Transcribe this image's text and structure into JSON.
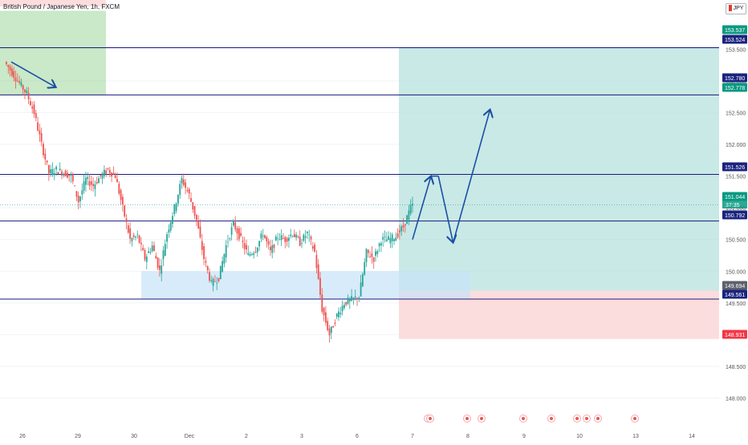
{
  "header": {
    "title": "British Pound / Japanese Yen, 1h, FXCM",
    "currency": "JPY"
  },
  "colors": {
    "up": "#26a69a",
    "down": "#ef5350",
    "hline": "#1a1a7e",
    "profit_zone": "#b2dfdb",
    "stop_zone": "#fbd5d5",
    "demand_zone": "#c8e3f8",
    "supply_zone": "#a5dba4",
    "arrow": "#1b4fa5",
    "label_navy": "#1a237e",
    "label_green": "#089981",
    "label_red": "#f23645"
  },
  "chart_data": {
    "type": "candlestick",
    "title": "British Pound / Japanese Yen, 1h, FXCM",
    "x_ticks": [
      "26",
      "29",
      "30",
      "Dec",
      "2",
      "3",
      "6",
      "7",
      "8",
      "9",
      "10",
      "13",
      "14"
    ],
    "y_ticks": [
      "148.000",
      "148.500",
      "149.000",
      "149.500",
      "150.000",
      "150.500",
      "151.000",
      "151.500",
      "152.000",
      "152.500",
      "153.000",
      "153.500"
    ],
    "ylim": [
      147.5,
      153.7
    ],
    "last_price": 151.044,
    "countdown": "37:35",
    "horizontal_levels": [
      153.524,
      152.78,
      151.526,
      150.792,
      149.561
    ],
    "price_labels": [
      {
        "value": "153.537",
        "kind": "green"
      },
      {
        "value": "153.524",
        "kind": "navy"
      },
      {
        "value": "152.780",
        "kind": "navy"
      },
      {
        "value": "152.778",
        "kind": "green"
      },
      {
        "value": "151.526",
        "kind": "navy"
      },
      {
        "value": "151.044",
        "kind": "teal"
      },
      {
        "value": "150.792",
        "kind": "navy"
      },
      {
        "value": "149.694",
        "kind": "gray"
      },
      {
        "value": "149.561",
        "kind": "navy"
      },
      {
        "value": "148.931",
        "kind": "red"
      }
    ],
    "position": {
      "entry": 149.694,
      "target": 153.537,
      "stop": 148.931
    },
    "zones": [
      {
        "name": "demand",
        "top": 150.0,
        "bottom": 149.561
      },
      {
        "name": "supply",
        "top": 153.537,
        "bottom": 152.778
      }
    ],
    "price_path": [
      [
        0,
        153.3
      ],
      [
        1.5,
        153.05
      ],
      [
        3,
        152.8
      ],
      [
        4,
        152.5
      ],
      [
        5,
        152.0
      ],
      [
        6,
        151.55
      ],
      [
        7,
        151.6
      ],
      [
        8,
        151.55
      ],
      [
        9,
        151.5
      ],
      [
        10,
        151.1
      ],
      [
        11,
        151.45
      ],
      [
        12,
        151.35
      ],
      [
        13,
        151.5
      ],
      [
        14,
        151.6
      ],
      [
        15,
        151.5
      ],
      [
        16,
        151.0
      ],
      [
        17,
        150.5
      ],
      [
        18,
        150.55
      ],
      [
        19,
        150.2
      ],
      [
        20,
        150.4
      ],
      [
        21,
        150.0
      ],
      [
        22,
        150.6
      ],
      [
        23,
        151.0
      ],
      [
        24,
        151.45
      ],
      [
        25,
        151.2
      ],
      [
        26,
        150.8
      ],
      [
        27,
        150.2
      ],
      [
        28,
        149.8
      ],
      [
        29,
        149.9
      ],
      [
        30,
        150.4
      ],
      [
        31,
        150.75
      ],
      [
        32,
        150.5
      ],
      [
        33,
        150.25
      ],
      [
        34,
        150.35
      ],
      [
        35,
        150.6
      ],
      [
        36,
        150.3
      ],
      [
        37,
        150.55
      ],
      [
        38,
        150.5
      ],
      [
        39,
        150.6
      ],
      [
        40,
        150.45
      ],
      [
        41,
        150.6
      ],
      [
        42,
        150.3
      ],
      [
        43,
        149.4
      ],
      [
        44,
        149.0
      ],
      [
        45,
        149.3
      ],
      [
        46,
        149.5
      ],
      [
        47,
        149.55
      ],
      [
        48,
        149.6
      ],
      [
        49,
        150.3
      ],
      [
        50,
        150.2
      ],
      [
        51,
        150.5
      ],
      [
        52,
        150.5
      ],
      [
        53,
        150.55
      ],
      [
        54,
        150.7
      ],
      [
        55,
        151.0
      ],
      [
        55.3,
        151.044
      ]
    ],
    "projection_path": [
      [
        55,
        150.5
      ],
      [
        57.5,
        151.5
      ],
      [
        58.5,
        151.5
      ],
      [
        60.5,
        150.45
      ],
      [
        65.5,
        152.55
      ]
    ]
  }
}
